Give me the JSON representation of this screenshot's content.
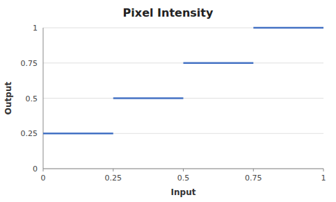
{
  "chart_data": {
    "type": "step",
    "title": "Pixel Intensity",
    "x_label": "Input",
    "y_label": "Output",
    "x_start": [
      0,
      0.25,
      0.5,
      0.75
    ],
    "x_end": [
      0.25,
      0.5,
      0.75,
      1.0
    ],
    "values": [
      0.25,
      0.5,
      0.75,
      1.0
    ],
    "color": "#4472C4",
    "xlim": [
      0,
      1
    ],
    "ylim": [
      0,
      1
    ],
    "xticks": [
      0,
      0.25,
      0.5,
      0.75,
      1
    ],
    "yticks": [
      0,
      0.25,
      0.5,
      0.75,
      1
    ],
    "grid": "y"
  }
}
